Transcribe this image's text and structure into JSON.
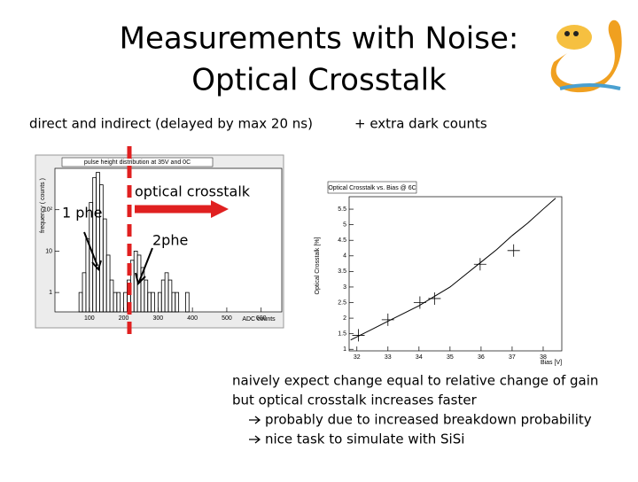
{
  "slide": {
    "title": [
      "Measurements with Noise:",
      "Optical Crosstalk"
    ],
    "subtitle": "direct and indirect (delayed by max 20 ns)",
    "subtitle_extra": "+ extra dark counts",
    "annotations": {
      "crosstalk": "optical crosstalk",
      "one_phe": "1 phe",
      "two_phe": "2phe"
    },
    "bullets": [
      "naively expect change equal to relative change of gain",
      "but optical crosstalk increases faster"
    ],
    "sub_bullets": [
      "probably due to increased breakdown probability",
      "nice task to simulate with SiSi"
    ]
  },
  "left_plot": {
    "type": "histogram",
    "title": "pulse height distribution at 35V and 0C",
    "ylabel": "frequency ( counts )",
    "xlabel": "ADC counts",
    "log_y": true,
    "color": "#000000",
    "bins": [
      60,
      70,
      80,
      90,
      100,
      110,
      120,
      130,
      140,
      150,
      160,
      170,
      180,
      190,
      200,
      210,
      220,
      230,
      240,
      250,
      260,
      270,
      280,
      290,
      300,
      310,
      320,
      330,
      340,
      350,
      360,
      370,
      380,
      390,
      400
    ],
    "counts": [
      0,
      1,
      3,
      20,
      150,
      600,
      800,
      400,
      60,
      8,
      2,
      1,
      1,
      0,
      1,
      2,
      6,
      10,
      8,
      4,
      2,
      1,
      1,
      0,
      1,
      2,
      3,
      2,
      1,
      1,
      0,
      0,
      1,
      0
    ],
    "xlim": [
      0,
      660
    ],
    "xticks": [
      100,
      200,
      300,
      400,
      500,
      600
    ],
    "ylim": [
      0.34,
      1000
    ],
    "yticks": [
      1,
      10,
      {
        "value": 100,
        "label": "10²"
      }
    ]
  },
  "right_plot": {
    "type": "scatter",
    "title": "Optical Crosstalk vs. Bias @ 6C",
    "ylabel": "Optical Crosstalk [%]",
    "xlabel": "Bias [V]",
    "color": "#000000",
    "x": [
      32.05,
      33,
      34.03,
      34.5,
      35.97,
      37.05
    ],
    "y": [
      1.45,
      1.95,
      2.5,
      2.63,
      3.73,
      4.17
    ],
    "fit": {
      "x": [
        31.8,
        32,
        32.5,
        33,
        33.5,
        34,
        34.5,
        35,
        35.5,
        36,
        36.5,
        37,
        37.5,
        38,
        38.4
      ],
      "y": [
        1.3,
        1.4,
        1.65,
        1.9,
        2.15,
        2.4,
        2.7,
        3.0,
        3.4,
        3.8,
        4.2,
        4.65,
        5.05,
        5.5,
        5.85
      ]
    },
    "xlim": [
      31.75,
      38.6
    ],
    "xticks": [
      32,
      33,
      34,
      35,
      36,
      37,
      38
    ],
    "ylim": [
      0.95,
      5.9
    ],
    "yticks": [
      1,
      1.5,
      2,
      2.5,
      3,
      3.5,
      4,
      4.5,
      5,
      5.5
    ]
  }
}
